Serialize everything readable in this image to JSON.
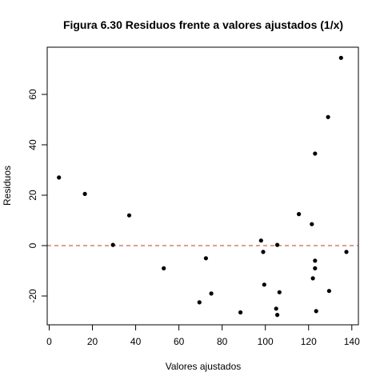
{
  "chart_data": {
    "type": "scatter",
    "title": "Figura 6.30 Residuos frente a valores ajustados (1/x)",
    "xlabel": "Valores ajustados",
    "ylabel": "Residuos",
    "xlim": [
      0,
      140
    ],
    "ylim": [
      -32,
      78
    ],
    "xticks": [
      0,
      20,
      40,
      60,
      80,
      100,
      120,
      140
    ],
    "xtick_labels": [
      "0",
      "20",
      "40",
      "60",
      "80",
      "100",
      "120",
      "140"
    ],
    "yticks": [
      -20,
      0,
      20,
      40,
      60
    ],
    "ytick_labels": [
      "-20",
      "0",
      "20",
      "40",
      "60"
    ],
    "reference_line": {
      "y": 0,
      "style": "dashed",
      "color": "#c0392b"
    },
    "point_color": "#000000",
    "grid": false,
    "points": [
      {
        "x": 4.5,
        "y": 27
      },
      {
        "x": 16.5,
        "y": 20.5
      },
      {
        "x": 29.5,
        "y": 0.3
      },
      {
        "x": 37,
        "y": 12
      },
      {
        "x": 53,
        "y": -9
      },
      {
        "x": 69.5,
        "y": -22.5
      },
      {
        "x": 72.5,
        "y": -5
      },
      {
        "x": 75,
        "y": -19
      },
      {
        "x": 88.5,
        "y": -26.5
      },
      {
        "x": 98,
        "y": 2
      },
      {
        "x": 99,
        "y": -2.5
      },
      {
        "x": 99.5,
        "y": -15.5
      },
      {
        "x": 105,
        "y": -25
      },
      {
        "x": 105.5,
        "y": -27.5
      },
      {
        "x": 105.5,
        "y": 0.3
      },
      {
        "x": 106.5,
        "y": -18.5
      },
      {
        "x": 115.5,
        "y": 12.5
      },
      {
        "x": 121.5,
        "y": 8.5
      },
      {
        "x": 122,
        "y": -13
      },
      {
        "x": 123,
        "y": -6
      },
      {
        "x": 123,
        "y": -9
      },
      {
        "x": 123,
        "y": 36.5
      },
      {
        "x": 123.5,
        "y": -26
      },
      {
        "x": 129,
        "y": 51
      },
      {
        "x": 129.5,
        "y": -18
      },
      {
        "x": 135,
        "y": 74.5
      },
      {
        "x": 137.5,
        "y": -2.5
      }
    ]
  }
}
